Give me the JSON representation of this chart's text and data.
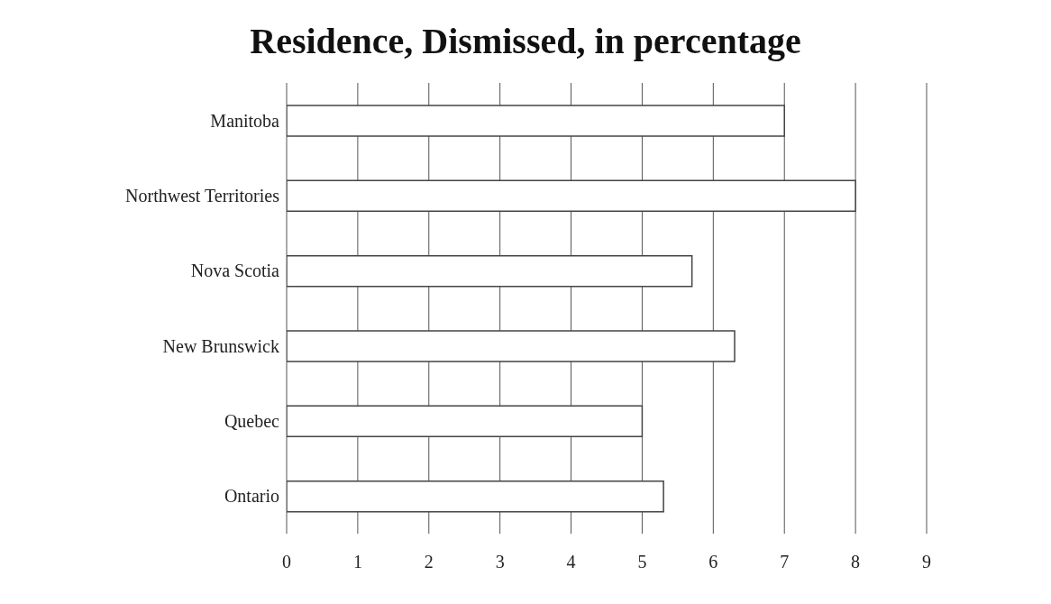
{
  "chart_data": {
    "type": "bar",
    "orientation": "horizontal",
    "title": "Residence, Dismissed, in percentage",
    "categories": [
      "Manitoba",
      "Northwest Territories",
      "Nova Scotia",
      "New Brunswick",
      "Quebec",
      "Ontario"
    ],
    "values": [
      7,
      8,
      5.7,
      6.3,
      5,
      5.3
    ],
    "color": "#444444",
    "xlim": [
      0,
      9
    ],
    "xticks": [
      0,
      1,
      2,
      3,
      4,
      5,
      6,
      7,
      8,
      9
    ],
    "grid": "x"
  }
}
